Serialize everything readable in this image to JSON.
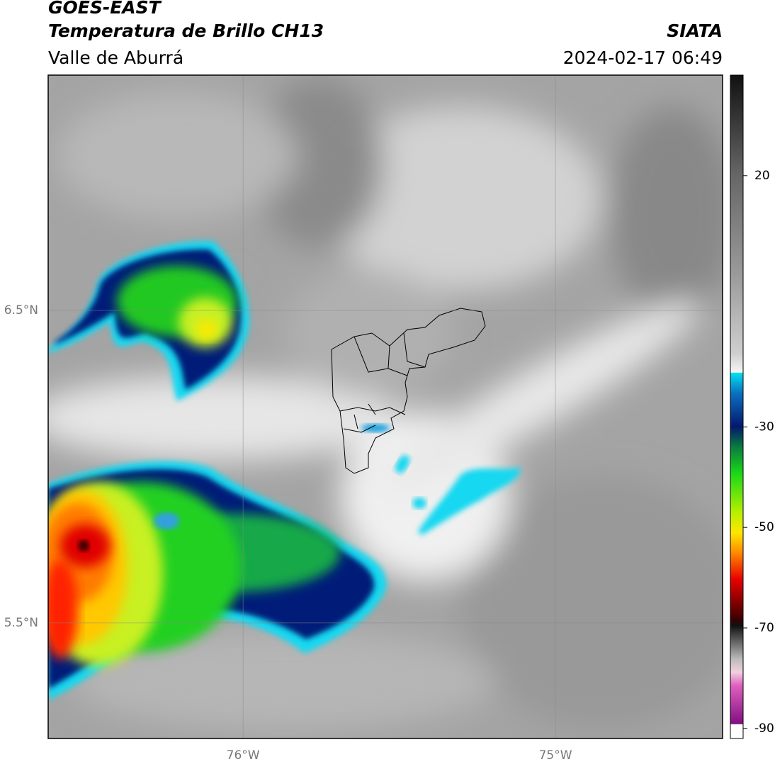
{
  "header": {
    "satellite": "GOES-EAST",
    "product": "Temperatura de Brillo CH13",
    "region": "Valle de Aburrá",
    "source": "SIATA",
    "datetime": "2024-02-17 06:49"
  },
  "map": {
    "xlim": [
      -76.624,
      -74.465
    ],
    "ylim": [
      5.13,
      7.253
    ],
    "xticks": [
      {
        "value": -76,
        "label": "76°W"
      },
      {
        "value": -75,
        "label": "75°W"
      }
    ],
    "yticks": [
      {
        "value": 6.5,
        "label": "6.5°N"
      },
      {
        "value": 5.5,
        "label": "5.5°N"
      }
    ],
    "grid": true
  },
  "colorbar": {
    "lim": [
      -92,
      40
    ],
    "ticks": [
      20,
      -30,
      -50,
      -70,
      -90
    ]
  }
}
